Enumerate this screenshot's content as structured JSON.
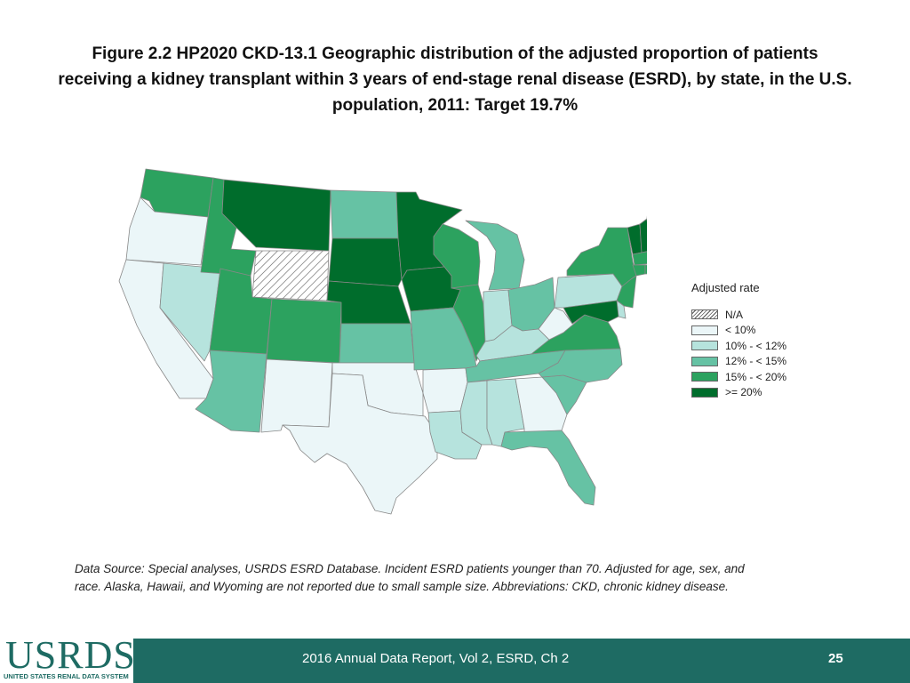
{
  "title": {
    "line1": "Figure 2.2 HP2020 CKD-13.1 Geographic distribution of the adjusted proportion of patients",
    "line2": "receiving a kidney transplant within 3 years of end-stage renal disease (ESRD), by state, in the U.S.",
    "line3": "population, 2011: Target 19.7%"
  },
  "legend": {
    "title": "Adjusted rate",
    "items": [
      {
        "label": "N/A",
        "key": "na",
        "color": "#ffffff"
      },
      {
        "label": "< 10%",
        "key": "c1",
        "color": "#ebf6f8"
      },
      {
        "label": "10% - < 12%",
        "key": "c2",
        "color": "#b6e3dd"
      },
      {
        "label": "12% - < 15%",
        "key": "c3",
        "color": "#66c2a4"
      },
      {
        "label": "15% - < 20%",
        "key": "c4",
        "color": "#2ca25f"
      },
      {
        "label": ">= 20%",
        "key": "c5",
        "color": "#006d2c"
      }
    ]
  },
  "state_categories": {
    "WA": "c4",
    "OR": "c1",
    "CA": "c1",
    "NV": "c2",
    "ID": "c4",
    "MT": "c5",
    "WY": "na",
    "UT": "c4",
    "AZ": "c3",
    "CO": "c4",
    "NM": "c1",
    "ND": "c3",
    "SD": "c5",
    "NE": "c5",
    "KS": "c3",
    "OK": "c1",
    "TX": "c1",
    "MN": "c5",
    "IA": "c5",
    "MO": "c3",
    "AR": "c1",
    "LA": "c2",
    "WI": "c4",
    "IL": "c4",
    "MI": "c3",
    "IN": "c2",
    "OH": "c3",
    "KY": "c2",
    "TN": "c3",
    "MS": "c2",
    "AL": "c2",
    "GA": "c1",
    "FL": "c3",
    "SC": "c3",
    "NC": "c3",
    "VA": "c4",
    "WV": "c1",
    "PA": "c2",
    "NY": "c4",
    "VT": "c5",
    "NH": "c5",
    "ME": "c3",
    "MA": "c4",
    "CT": "c4",
    "RI": "c4",
    "NJ": "c4",
    "DE": "c2",
    "MD": "c5"
  },
  "footnote": {
    "line1": "Data Source: Special analyses, USRDS ESRD Database. Incident ESRD patients younger than 70. Adjusted for age, sex, and",
    "line2": "race. Alaska, Hawaii, and Wyoming are not reported due to small sample size. Abbreviations: CKD, chronic kidney disease."
  },
  "footer": {
    "report": "2016 Annual Data Report, Vol 2, ESRD, Ch 2",
    "page": "25",
    "logo": "USRDS",
    "logo_sub": "UNITED STATES RENAL DATA SYSTEM",
    "band_color": "#1e6b63"
  }
}
